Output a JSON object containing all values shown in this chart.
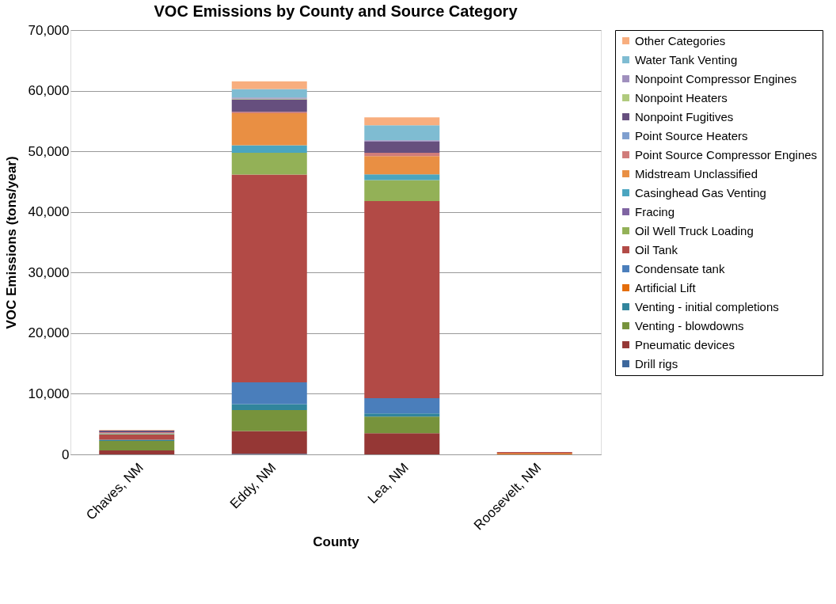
{
  "chart_data": {
    "type": "bar",
    "stacked": true,
    "title": "VOC Emissions by County and Source Category",
    "xlabel": "County",
    "ylabel": "VOC Emissions (tons/year)",
    "categories": [
      "Chaves, NM",
      "Eddy, NM",
      "Lea, NM",
      "Roosevelt, NM"
    ],
    "ylim": [
      0,
      70000
    ],
    "yticks": [
      {
        "value": 0,
        "label": "0"
      },
      {
        "value": 10000,
        "label": "10,000"
      },
      {
        "value": 20000,
        "label": "20,000"
      },
      {
        "value": 30000,
        "label": "30,000"
      },
      {
        "value": 40000,
        "label": "40,000"
      },
      {
        "value": 50000,
        "label": "50,000"
      },
      {
        "value": 60000,
        "label": "60,000"
      },
      {
        "value": 70000,
        "label": "70,000"
      }
    ],
    "grid": "y",
    "legend": "right",
    "series": [
      {
        "name": "Drill rigs",
        "color": "#3c679c",
        "values": [
          0,
          100,
          0,
          0
        ]
      },
      {
        "name": "Pneumatic devices",
        "color": "#953735",
        "values": [
          650,
          3750,
          3490,
          null
        ]
      },
      {
        "name": "Venting - blowdowns",
        "color": "#77933c",
        "values": [
          1570,
          3470,
          2740,
          0
        ]
      },
      {
        "name": "Venting - initial completions",
        "color": "#31859c",
        "values": [
          180,
          970,
          520,
          0
        ]
      },
      {
        "name": "Artificial Lift",
        "color": "#e46c0a",
        "values": [
          0,
          0,
          0,
          200
        ]
      },
      {
        "name": "Condensate tank",
        "color": "#4a7ebb",
        "values": [
          0,
          3600,
          2520,
          0
        ]
      },
      {
        "name": "Oil Tank",
        "color": "#b24a46",
        "values": [
          860,
          34270,
          32520,
          200
        ]
      },
      {
        "name": "Oil Well Truck Loading",
        "color": "#93b157",
        "values": [
          100,
          3600,
          3450,
          0
        ]
      },
      {
        "name": "Fracing",
        "color": "#7f64a2",
        "values": [
          0,
          0,
          0,
          0
        ]
      },
      {
        "name": "Casinghead Gas Venting",
        "color": "#4aa5c0",
        "values": [
          100,
          1230,
          950,
          0
        ]
      },
      {
        "name": "Midstream Unclassified",
        "color": "#e98f43",
        "values": [
          0,
          5300,
          3000,
          0
        ]
      },
      {
        "name": "Point Source Compressor Engines",
        "color": "#d07c7a",
        "values": [
          200,
          220,
          560,
          0
        ]
      },
      {
        "name": "Point Source Heaters",
        "color": "#7f9fcf",
        "values": [
          0,
          0,
          0,
          0
        ]
      },
      {
        "name": "Nonpoint Fugitives",
        "color": "#664f7e",
        "values": [
          300,
          2050,
          1830,
          0
        ]
      },
      {
        "name": "Nonpoint Heaters",
        "color": "#b0ca7d",
        "values": [
          0,
          100,
          0,
          0
        ]
      },
      {
        "name": "Nonpoint Compressor Engines",
        "color": "#9f8fbd",
        "values": [
          0,
          210,
          220,
          0
        ]
      },
      {
        "name": "Water Tank Venting",
        "color": "#7fbcd2",
        "values": [
          0,
          1400,
          2480,
          0
        ]
      },
      {
        "name": "Other Categories",
        "color": "#f8ae7e",
        "values": [
          100,
          1270,
          1310,
          null
        ]
      }
    ]
  }
}
